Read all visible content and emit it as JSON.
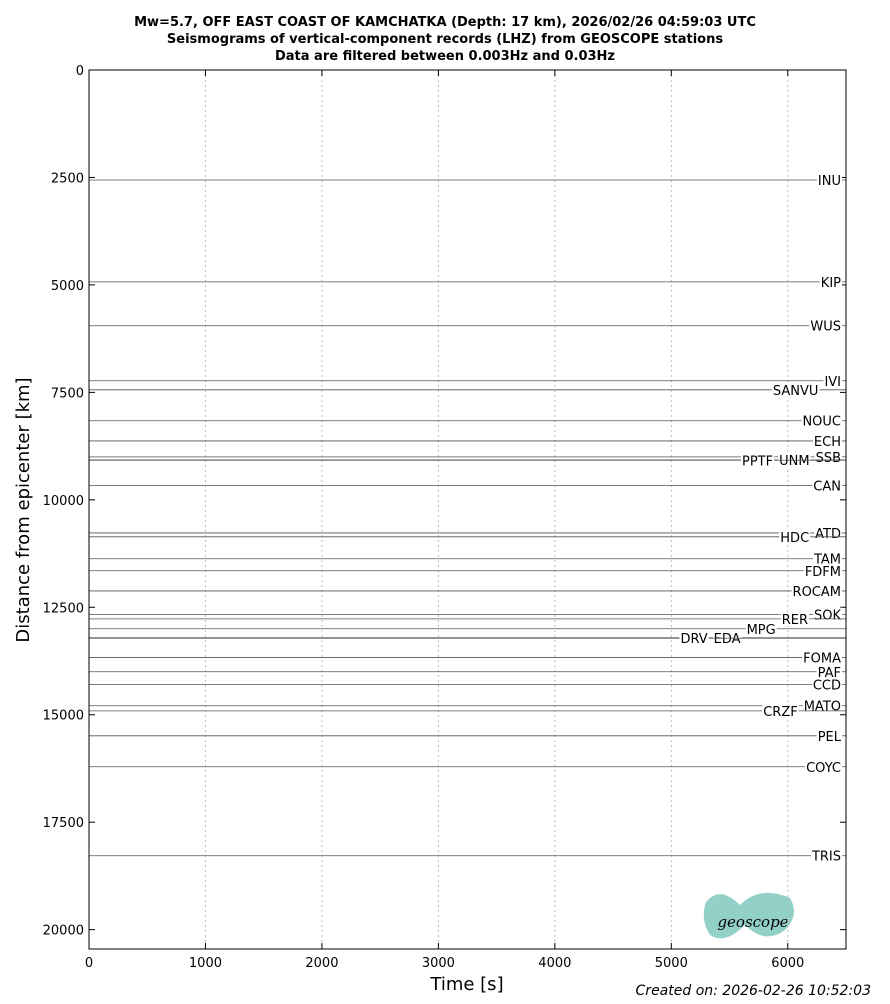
{
  "chart_data": {
    "type": "record-section",
    "title": [
      "Mw=5.7, OFF EAST COAST OF KAMCHATKA (Depth: 17 km), 2026/02/26 04:59:03 UTC",
      "Seismograms of vertical-component records (LHZ) from GEOSCOPE stations",
      "Data are filtered between 0.003Hz and 0.03Hz"
    ],
    "x_label": "Time [s]",
    "y_label": "Distance from epicenter [km]",
    "xlim": [
      0,
      6500
    ],
    "xticks": [
      0,
      1000,
      2000,
      3000,
      4000,
      5000,
      6000
    ],
    "ylim": [
      0,
      20450
    ],
    "yticks": [
      0,
      2500,
      5000,
      7500,
      10000,
      12500,
      15000,
      17500,
      20000
    ],
    "y_inverted": true,
    "grid": true,
    "color": "#555555",
    "stations": [
      {
        "name": "INU",
        "distance": 2560
      },
      {
        "name": "KIP",
        "distance": 4930
      },
      {
        "name": "WUS",
        "distance": 5950
      },
      {
        "name": "IVI",
        "distance": 7230
      },
      {
        "name": "SANVU",
        "distance": 7440
      },
      {
        "name": "NOUC",
        "distance": 8160
      },
      {
        "name": "ECH",
        "distance": 8630
      },
      {
        "name": "SSB",
        "distance": 9000
      },
      {
        "name": "UNM",
        "distance": 9070
      },
      {
        "name": "PPTF",
        "distance": 9080
      },
      {
        "name": "CAN",
        "distance": 9670
      },
      {
        "name": "ATD",
        "distance": 10770
      },
      {
        "name": "HDC",
        "distance": 10860
      },
      {
        "name": "TAM",
        "distance": 11370
      },
      {
        "name": "FDFM",
        "distance": 11650
      },
      {
        "name": "ROCAM",
        "distance": 12120
      },
      {
        "name": "SOK",
        "distance": 12670
      },
      {
        "name": "RER",
        "distance": 12770
      },
      {
        "name": "MPG",
        "distance": 13000
      },
      {
        "name": "EDA",
        "distance": 13210
      },
      {
        "name": "DRV",
        "distance": 13220
      },
      {
        "name": "FOMA",
        "distance": 13670
      },
      {
        "name": "PAF",
        "distance": 14000
      },
      {
        "name": "CCD",
        "distance": 14300
      },
      {
        "name": "MATO",
        "distance": 14790
      },
      {
        "name": "CRZF",
        "distance": 14910
      },
      {
        "name": "PEL",
        "distance": 15490
      },
      {
        "name": "COYC",
        "distance": 16210
      },
      {
        "name": "TRIS",
        "distance": 18280
      }
    ],
    "logo": "geoscope",
    "footer": "Created on: 2026-02-26 10:52:03"
  }
}
